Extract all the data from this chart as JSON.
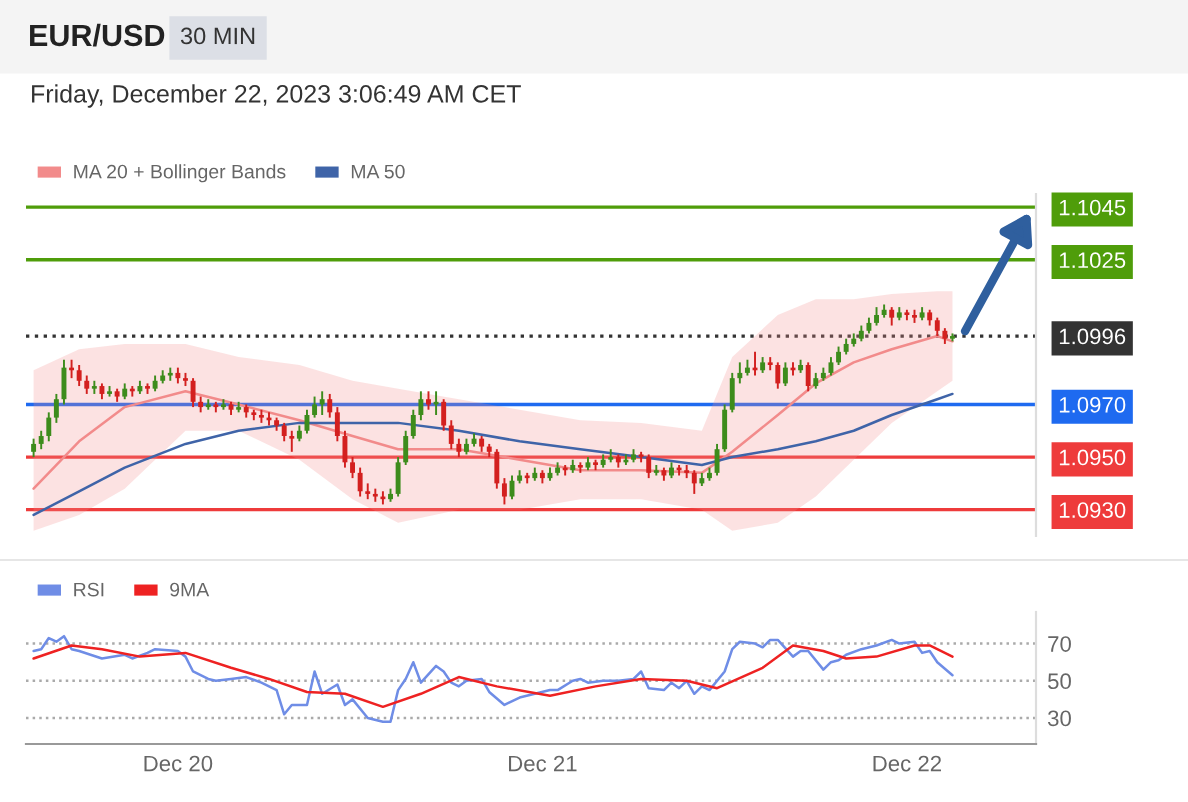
{
  "chart_data": [
    {
      "type": "candlestick",
      "title": "EUR/USD",
      "subtitle": "Friday, December 22, 2023 3:06:49 AM CET",
      "annotations": [
        "30 MIN"
      ],
      "x": [
        "2023-12-19T14:30",
        "2023-12-19T15:00",
        "2023-12-19T15:30",
        "2023-12-19T16:00",
        "2023-12-19T16:30",
        "2023-12-19T17:00",
        "2023-12-19T17:30",
        "2023-12-19T18:00",
        "2023-12-19T18:30",
        "2023-12-19T19:00",
        "2023-12-19T19:30",
        "2023-12-19T20:00",
        "2023-12-19T20:30",
        "2023-12-19T21:00",
        "2023-12-19T21:30",
        "2023-12-19T22:00",
        "2023-12-19T22:30",
        "2023-12-19T23:00",
        "2023-12-19T23:30",
        "2023-12-20T00:00",
        "2023-12-20T00:30",
        "2023-12-20T01:00",
        "2023-12-20T01:30",
        "2023-12-20T02:00",
        "2023-12-20T02:30",
        "2023-12-20T03:00",
        "2023-12-20T03:30",
        "2023-12-20T04:00",
        "2023-12-20T04:30",
        "2023-12-20T05:00",
        "2023-12-20T05:30",
        "2023-12-20T06:00",
        "2023-12-20T06:30",
        "2023-12-20T07:00",
        "2023-12-20T07:30",
        "2023-12-20T08:00",
        "2023-12-20T08:30",
        "2023-12-20T09:00",
        "2023-12-20T09:30",
        "2023-12-20T10:00",
        "2023-12-20T10:30",
        "2023-12-20T11:00",
        "2023-12-20T11:30",
        "2023-12-20T12:00",
        "2023-12-20T12:30",
        "2023-12-20T13:00",
        "2023-12-20T13:30",
        "2023-12-20T14:00",
        "2023-12-20T14:30",
        "2023-12-20T15:00",
        "2023-12-20T15:30",
        "2023-12-20T16:00",
        "2023-12-20T16:30",
        "2023-12-20T17:00",
        "2023-12-20T17:30",
        "2023-12-20T18:00",
        "2023-12-20T18:30",
        "2023-12-20T19:00",
        "2023-12-20T19:30",
        "2023-12-20T20:00",
        "2023-12-20T20:30",
        "2023-12-20T21:00",
        "2023-12-20T21:30",
        "2023-12-20T22:00",
        "2023-12-20T22:30",
        "2023-12-20T23:00",
        "2023-12-20T23:30",
        "2023-12-21T00:00",
        "2023-12-21T00:30",
        "2023-12-21T01:00",
        "2023-12-21T01:30",
        "2023-12-21T02:00",
        "2023-12-21T02:30",
        "2023-12-21T03:00",
        "2023-12-21T03:30",
        "2023-12-21T04:00",
        "2023-12-21T04:30",
        "2023-12-21T05:00",
        "2023-12-21T05:30",
        "2023-12-21T06:00",
        "2023-12-21T06:30",
        "2023-12-21T07:00",
        "2023-12-21T07:30",
        "2023-12-21T08:00",
        "2023-12-21T08:30",
        "2023-12-21T09:00",
        "2023-12-21T09:30",
        "2023-12-21T10:00",
        "2023-12-21T10:30",
        "2023-12-21T11:00",
        "2023-12-21T11:30",
        "2023-12-21T12:00",
        "2023-12-21T12:30",
        "2023-12-21T13:00",
        "2023-12-21T13:30",
        "2023-12-21T14:00",
        "2023-12-21T14:30",
        "2023-12-21T15:00",
        "2023-12-21T15:30",
        "2023-12-21T16:00",
        "2023-12-21T16:30",
        "2023-12-21T17:00",
        "2023-12-21T17:30",
        "2023-12-21T18:00",
        "2023-12-21T18:30",
        "2023-12-21T19:00",
        "2023-12-21T19:30",
        "2023-12-21T20:00",
        "2023-12-21T20:30",
        "2023-12-21T21:00",
        "2023-12-21T21:30",
        "2023-12-21T22:00",
        "2023-12-21T22:30",
        "2023-12-21T23:00",
        "2023-12-21T23:30",
        "2023-12-22T00:00",
        "2023-12-22T00:30",
        "2023-12-22T01:00",
        "2023-12-22T01:30",
        "2023-12-22T02:00",
        "2023-12-22T02:30",
        "2023-12-22T03:00"
      ],
      "ohlc": [
        [
          1.0952,
          1.0957,
          1.095,
          1.0955
        ],
        [
          1.0955,
          1.096,
          1.0953,
          1.0958
        ],
        [
          1.0958,
          1.0967,
          1.0956,
          1.0965
        ],
        [
          1.0965,
          1.0974,
          1.0963,
          1.0972
        ],
        [
          1.0972,
          1.0987,
          1.097,
          1.0984
        ],
        [
          1.0984,
          1.0987,
          1.098,
          1.0983
        ],
        [
          1.0983,
          1.0985,
          1.0977,
          1.0979
        ],
        [
          1.0979,
          1.0981,
          1.0974,
          1.0976
        ],
        [
          1.0976,
          1.0979,
          1.0974,
          1.0977
        ],
        [
          1.0977,
          1.0978,
          1.0972,
          1.0974
        ],
        [
          1.0974,
          1.0977,
          1.0973,
          1.0975
        ],
        [
          1.0975,
          1.0976,
          1.0971,
          1.0973
        ],
        [
          1.0973,
          1.0978,
          1.0972,
          1.0976
        ],
        [
          1.0976,
          1.0977,
          1.0973,
          1.0975
        ],
        [
          1.0975,
          1.0979,
          1.0974,
          1.0977
        ],
        [
          1.0977,
          1.0978,
          1.0974,
          1.0976
        ],
        [
          1.0976,
          1.0981,
          1.0975,
          1.0979
        ],
        [
          1.0979,
          1.0983,
          1.0978,
          1.0981
        ],
        [
          1.0981,
          1.0984,
          1.0979,
          1.0982
        ],
        [
          1.0982,
          1.0984,
          1.0978,
          1.098
        ],
        [
          1.098,
          1.0982,
          1.0977,
          1.0979
        ],
        [
          1.0979,
          1.098,
          1.0969,
          1.0971
        ],
        [
          1.0971,
          1.0973,
          1.0967,
          1.0969
        ],
        [
          1.0969,
          1.0972,
          1.0968,
          1.097
        ],
        [
          1.097,
          1.0971,
          1.0967,
          1.0969
        ],
        [
          1.0969,
          1.0972,
          1.0968,
          1.097
        ],
        [
          1.097,
          1.0971,
          1.0966,
          1.0968
        ],
        [
          1.0968,
          1.0971,
          1.0967,
          1.0969
        ],
        [
          1.0969,
          1.097,
          1.0965,
          1.0967
        ],
        [
          1.0967,
          1.0968,
          1.0964,
          1.0966
        ],
        [
          1.0966,
          1.0968,
          1.0963,
          1.0965
        ],
        [
          1.0965,
          1.0967,
          1.0962,
          1.0964
        ],
        [
          1.0964,
          1.0965,
          1.096,
          1.0962
        ],
        [
          1.0962,
          1.0963,
          1.0956,
          1.0958
        ],
        [
          1.0958,
          1.096,
          1.0952,
          1.0957
        ],
        [
          1.0957,
          1.0962,
          1.0956,
          1.096
        ],
        [
          1.096,
          1.0968,
          1.0959,
          1.0966
        ],
        [
          1.0966,
          1.0973,
          1.0965,
          1.097
        ],
        [
          1.097,
          1.0975,
          1.0966,
          1.0972
        ],
        [
          1.0972,
          1.0974,
          1.0965,
          1.0967
        ],
        [
          1.0967,
          1.0969,
          1.0956,
          1.0958
        ],
        [
          1.0958,
          1.096,
          1.0946,
          1.0948
        ],
        [
          1.0948,
          1.095,
          1.0942,
          1.0944
        ],
        [
          1.0944,
          1.0946,
          1.0935,
          1.0937
        ],
        [
          1.0937,
          1.094,
          1.0934,
          1.0936
        ],
        [
          1.0936,
          1.0938,
          1.0933,
          1.0935
        ],
        [
          1.0935,
          1.0937,
          1.0932,
          1.0934
        ],
        [
          1.0934,
          1.0938,
          1.0933,
          1.0936
        ],
        [
          1.0936,
          1.095,
          1.0935,
          1.0948
        ],
        [
          1.0948,
          1.096,
          1.0947,
          1.0958
        ],
        [
          1.0958,
          1.0968,
          1.0957,
          1.0966
        ],
        [
          1.0966,
          1.0975,
          1.0964,
          1.0972
        ],
        [
          1.0972,
          1.0975,
          1.0968,
          1.097
        ],
        [
          1.097,
          1.0975,
          1.0966,
          1.0971
        ],
        [
          1.0971,
          1.0972,
          1.096,
          1.0962
        ],
        [
          1.0962,
          1.0964,
          1.0953,
          1.0955
        ],
        [
          1.0955,
          1.0957,
          1.095,
          1.0952
        ],
        [
          1.0952,
          1.0957,
          1.0951,
          1.0955
        ],
        [
          1.0955,
          1.0959,
          1.0954,
          1.0957
        ],
        [
          1.0957,
          1.0958,
          1.0952,
          1.0954
        ],
        [
          1.0954,
          1.0955,
          1.095,
          1.0952
        ],
        [
          1.0952,
          1.0953,
          1.0938,
          1.094
        ],
        [
          1.094,
          1.0942,
          1.0932,
          1.0935
        ],
        [
          1.0935,
          1.0943,
          1.0934,
          1.0941
        ],
        [
          1.0941,
          1.0945,
          1.094,
          1.0943
        ],
        [
          1.0943,
          1.0944,
          1.094,
          1.0942
        ],
        [
          1.0942,
          1.0946,
          1.0941,
          1.0944
        ],
        [
          1.0944,
          1.0945,
          1.094,
          1.0942
        ],
        [
          1.0942,
          1.0946,
          1.0941,
          1.0944
        ],
        [
          1.0944,
          1.0948,
          1.0943,
          1.0946
        ],
        [
          1.0946,
          1.0947,
          1.0943,
          1.0945
        ],
        [
          1.0945,
          1.0949,
          1.0944,
          1.0947
        ],
        [
          1.0947,
          1.0948,
          1.0944,
          1.0946
        ],
        [
          1.0946,
          1.095,
          1.0945,
          1.0948
        ],
        [
          1.0948,
          1.0949,
          1.0945,
          1.0947
        ],
        [
          1.0947,
          1.0951,
          1.0946,
          1.0949
        ],
        [
          1.0949,
          1.0953,
          1.0948,
          1.095
        ],
        [
          1.095,
          1.0951,
          1.0946,
          1.0948
        ],
        [
          1.0948,
          1.0951,
          1.0947,
          1.0949
        ],
        [
          1.0949,
          1.0953,
          1.0948,
          1.0951
        ],
        [
          1.0951,
          1.0952,
          1.0948,
          1.095
        ],
        [
          1.095,
          1.0951,
          1.0942,
          1.0944
        ],
        [
          1.0944,
          1.0947,
          1.0943,
          1.0945
        ],
        [
          1.0945,
          1.0946,
          1.0941,
          1.0943
        ],
        [
          1.0943,
          1.0948,
          1.0942,
          1.0946
        ],
        [
          1.0946,
          1.0947,
          1.0943,
          1.0945
        ],
        [
          1.0945,
          1.0947,
          1.0942,
          1.0944
        ],
        [
          1.0944,
          1.0945,
          1.0936,
          1.094
        ],
        [
          1.094,
          1.0944,
          1.0939,
          1.0942
        ],
        [
          1.0942,
          1.0946,
          1.0941,
          1.0944
        ],
        [
          1.0944,
          1.0955,
          1.0943,
          1.0953
        ],
        [
          1.0953,
          1.097,
          1.0952,
          1.0968
        ],
        [
          1.0968,
          1.0982,
          1.0967,
          1.098
        ],
        [
          1.098,
          1.0986,
          1.0978,
          1.0982
        ],
        [
          1.0982,
          1.0987,
          1.0981,
          1.0984
        ],
        [
          1.0984,
          1.099,
          1.0981,
          1.0983
        ],
        [
          1.0983,
          1.0988,
          1.0982,
          1.0986
        ],
        [
          1.0986,
          1.0988,
          1.0983,
          1.0985
        ],
        [
          1.0985,
          1.0986,
          1.0976,
          1.0978
        ],
        [
          1.0978,
          1.0986,
          1.0977,
          1.0984
        ],
        [
          1.0984,
          1.0986,
          1.0981,
          1.0983
        ],
        [
          1.0983,
          1.0987,
          1.0982,
          1.0985
        ],
        [
          1.0985,
          1.0986,
          1.0975,
          1.0977
        ],
        [
          1.0977,
          1.0982,
          1.0976,
          1.098
        ],
        [
          1.098,
          1.0984,
          1.0979,
          1.0982
        ],
        [
          1.0982,
          1.0988,
          1.0981,
          1.0986
        ],
        [
          1.0986,
          1.0992,
          1.0985,
          1.099
        ],
        [
          1.099,
          1.0995,
          1.0989,
          1.0993
        ],
        [
          1.0993,
          1.0997,
          1.0992,
          1.0995
        ],
        [
          1.0995,
          1.1,
          1.0994,
          1.0998
        ],
        [
          1.0998,
          1.1003,
          1.0997,
          1.1001
        ],
        [
          1.1001,
          1.1007,
          1.1,
          1.1004
        ],
        [
          1.1004,
          1.1008,
          1.1003,
          1.1006
        ],
        [
          1.1006,
          1.1007,
          1.1,
          1.1003
        ],
        [
          1.1003,
          1.1007,
          1.1002,
          1.1005
        ],
        [
          1.1005,
          1.1006,
          1.1002,
          1.1004
        ],
        [
          1.1004,
          1.1006,
          1.1001,
          1.1003
        ],
        [
          1.1003,
          1.1007,
          1.1002,
          1.1005
        ],
        [
          1.1005,
          1.1006,
          1.1,
          1.1002
        ],
        [
          1.1002,
          1.1003,
          1.0996,
          1.0998
        ],
        [
          1.0998,
          1.0999,
          1.0993,
          1.0995
        ],
        [
          1.0995,
          1.0997,
          1.0994,
          1.0996
        ]
      ],
      "series": [
        {
          "name": "MA 20 + Bollinger Bands",
          "type": "line",
          "color": "#f28b8b",
          "x": [
            "2023-12-19T14:30",
            "2023-12-19T17:30",
            "2023-12-19T20:30",
            "2023-12-20T00:30",
            "2023-12-20T04:00",
            "2023-12-20T08:00",
            "2023-12-20T11:30",
            "2023-12-20T14:30",
            "2023-12-20T18:30",
            "2023-12-20T22:30",
            "2023-12-21T02:30",
            "2023-12-21T06:30",
            "2023-12-21T10:30",
            "2023-12-21T12:30",
            "2023-12-21T15:30",
            "2023-12-21T18:00",
            "2023-12-21T20:30",
            "2023-12-21T23:00",
            "2023-12-22T02:00",
            "2023-12-22T03:00"
          ],
          "values": [
            1.0938,
            1.0956,
            1.0969,
            1.0975,
            1.097,
            1.0964,
            1.0958,
            1.0953,
            1.0953,
            1.0949,
            1.0945,
            1.0945,
            1.0944,
            1.0952,
            1.0966,
            1.0978,
            1.0986,
            1.0991,
            1.0996,
            1.0994
          ],
          "upper": [
            1.0983,
            1.0991,
            1.0993,
            1.0993,
            1.0988,
            1.0985,
            1.0979,
            1.0976,
            1.0972,
            1.0968,
            1.0964,
            1.0963,
            1.096,
            1.0988,
            1.1004,
            1.101,
            1.101,
            1.1012,
            1.1013,
            1.1013
          ],
          "lower": [
            1.0922,
            1.0928,
            1.0938,
            1.096,
            1.096,
            1.0949,
            1.0934,
            1.0925,
            1.093,
            1.093,
            1.0934,
            1.0934,
            1.093,
            1.0922,
            1.0925,
            1.0935,
            1.0949,
            1.0963,
            1.0975,
            1.0979
          ]
        },
        {
          "name": "MA 50",
          "type": "line",
          "color": "#3f64a8",
          "x": [
            "2023-12-19T14:30",
            "2023-12-19T17:30",
            "2023-12-19T20:30",
            "2023-12-20T00:30",
            "2023-12-20T04:00",
            "2023-12-20T08:00",
            "2023-12-20T11:30",
            "2023-12-20T14:30",
            "2023-12-20T18:30",
            "2023-12-20T22:30",
            "2023-12-21T02:30",
            "2023-12-21T06:30",
            "2023-12-21T10:30",
            "2023-12-21T12:30",
            "2023-12-21T15:30",
            "2023-12-21T18:00",
            "2023-12-21T20:30",
            "2023-12-21T23:00",
            "2023-12-22T02:00",
            "2023-12-22T03:00"
          ],
          "values": [
            1.0928,
            1.0937,
            1.0946,
            1.0955,
            1.096,
            1.0963,
            1.0963,
            1.0963,
            1.096,
            1.0956,
            1.0953,
            1.095,
            1.0947,
            1.095,
            1.0953,
            1.0956,
            1.096,
            1.0966,
            1.0972,
            1.0974
          ]
        }
      ],
      "ref_lines": [
        {
          "axis": "y",
          "value": 1.1045,
          "color": "#4f9d0a",
          "line_style": "solid"
        },
        {
          "axis": "y",
          "value": 1.1025,
          "color": "#4f9d0a",
          "line_style": "solid"
        },
        {
          "axis": "y",
          "value": 1.0996,
          "color": "#333333",
          "line_style": "dotted"
        },
        {
          "axis": "y",
          "value": 1.097,
          "color": "#1e6af0",
          "line_style": "solid"
        },
        {
          "axis": "y",
          "value": 1.095,
          "color": "#ee3b3b",
          "line_style": "solid"
        },
        {
          "axis": "y",
          "value": 1.093,
          "color": "#ee3b3b",
          "line_style": "solid"
        }
      ],
      "xlim": [
        "2023-12-19T14:00",
        "2023-12-22T08:30"
      ],
      "ylim": [
        1.092,
        1.105
      ],
      "yticks": [
        {
          "value": 1.093,
          "label": "1.0930"
        },
        {
          "value": 1.095,
          "label": "1.0950"
        },
        {
          "value": 1.097,
          "label": "1.0970"
        },
        {
          "value": 1.0996,
          "label": "1.0996"
        },
        {
          "value": 1.1025,
          "label": "1.1025"
        },
        {
          "value": 1.1045,
          "label": "1.1045"
        }
      ],
      "tick_labels": "y",
      "grid": false,
      "legend": "top left"
    },
    {
      "type": "line",
      "series": [
        {
          "name": "RSI",
          "color": "#6f8de6",
          "x": [
            "2023-12-19T14:30",
            "2023-12-19T15:00",
            "2023-12-19T15:30",
            "2023-12-19T16:00",
            "2023-12-19T16:30",
            "2023-12-19T17:00",
            "2023-12-19T17:30",
            "2023-12-19T19:00",
            "2023-12-19T20:30",
            "2023-12-19T21:00",
            "2023-12-19T22:00",
            "2023-12-19T22:30",
            "2023-12-20T00:00",
            "2023-12-20T00:30",
            "2023-12-20T01:00",
            "2023-12-20T02:00",
            "2023-12-20T02:30",
            "2023-12-20T03:30",
            "2023-12-20T04:30",
            "2023-12-20T05:30",
            "2023-12-20T06:30",
            "2023-12-20T07:00",
            "2023-12-20T07:30",
            "2023-12-20T08:30",
            "2023-12-20T09:00",
            "2023-12-20T09:30",
            "2023-12-20T10:30",
            "2023-12-20T11:00",
            "2023-12-20T11:30",
            "2023-12-20T12:30",
            "2023-12-20T13:30",
            "2023-12-20T14:00",
            "2023-12-20T14:30",
            "2023-12-20T15:00",
            "2023-12-20T15:30",
            "2023-12-20T16:00",
            "2023-12-20T17:00",
            "2023-12-20T17:30",
            "2023-12-20T18:00",
            "2023-12-20T18:30",
            "2023-12-20T19:00",
            "2023-12-20T20:00",
            "2023-12-20T20:30",
            "2023-12-20T21:30",
            "2023-12-20T22:30",
            "2023-12-20T23:30",
            "2023-12-21T00:30",
            "2023-12-21T01:00",
            "2023-12-21T02:00",
            "2023-12-21T02:30",
            "2023-12-21T03:00",
            "2023-12-21T04:00",
            "2023-12-21T05:00",
            "2023-12-21T06:00",
            "2023-12-21T06:30",
            "2023-12-21T07:00",
            "2023-12-21T08:00",
            "2023-12-21T08:30",
            "2023-12-21T09:00",
            "2023-12-21T09:30",
            "2023-12-21T10:00",
            "2023-12-21T10:30",
            "2023-12-21T11:00",
            "2023-12-21T12:00",
            "2023-12-21T12:30",
            "2023-12-21T13:00",
            "2023-12-21T14:00",
            "2023-12-21T14:30",
            "2023-12-21T15:00",
            "2023-12-21T15:30",
            "2023-12-21T16:30",
            "2023-12-21T17:00",
            "2023-12-21T17:30",
            "2023-12-21T18:30",
            "2023-12-21T19:00",
            "2023-12-21T19:30",
            "2023-12-21T20:00",
            "2023-12-21T21:00",
            "2023-12-21T22:00",
            "2023-12-21T23:00",
            "2023-12-21T23:30",
            "2023-12-22T00:30",
            "2023-12-22T01:00",
            "2023-12-22T01:30",
            "2023-12-22T02:00",
            "2023-12-22T03:00"
          ],
          "values": [
            66,
            67,
            73,
            71,
            74,
            67,
            66,
            62,
            64,
            62,
            65,
            67,
            66,
            63,
            55,
            51,
            50,
            51,
            52,
            49,
            45,
            32,
            37,
            37,
            55,
            43,
            48,
            37,
            40,
            30,
            28,
            28,
            45,
            51,
            60,
            49,
            58,
            55,
            49,
            47,
            50,
            51,
            44,
            37,
            41,
            43,
            45,
            45,
            50,
            51,
            49,
            50,
            50,
            51,
            55,
            46,
            45,
            49,
            46,
            50,
            43,
            47,
            45,
            55,
            67,
            71,
            70,
            68,
            72,
            72,
            63,
            66,
            66,
            56,
            60,
            61,
            64,
            67,
            69,
            72,
            70,
            71,
            65,
            66,
            60,
            53
          ]
        },
        {
          "name": "9MA",
          "color": "#ee2222",
          "x": [
            "2023-12-19T14:30",
            "2023-12-19T17:00",
            "2023-12-19T19:00",
            "2023-12-19T21:30",
            "2023-12-20T00:30",
            "2023-12-20T03:30",
            "2023-12-20T06:00",
            "2023-12-20T08:30",
            "2023-12-20T11:00",
            "2023-12-20T13:30",
            "2023-12-20T16:00",
            "2023-12-20T18:30",
            "2023-12-20T21:00",
            "2023-12-21T00:30",
            "2023-12-21T03:30",
            "2023-12-21T06:30",
            "2023-12-21T09:30",
            "2023-12-21T11:30",
            "2023-12-21T14:30",
            "2023-12-21T16:30",
            "2023-12-21T18:30",
            "2023-12-21T20:00",
            "2023-12-21T22:00",
            "2023-12-22T00:30",
            "2023-12-22T01:30",
            "2023-12-22T03:00"
          ],
          "values": [
            62,
            69,
            67,
            63,
            65,
            57,
            51,
            44,
            43,
            36,
            43,
            52,
            47,
            42,
            47,
            51,
            50,
            46,
            57,
            69,
            66,
            62,
            63,
            69,
            69,
            63
          ]
        }
      ],
      "xlim": [
        "2023-12-19T14:00",
        "2023-12-22T08:30"
      ],
      "xticks": [
        {
          "value": "2023-12-20",
          "label": "Dec 20"
        },
        {
          "value": "2023-12-21",
          "label": "Dec 21"
        },
        {
          "value": "2023-12-22",
          "label": "Dec 22"
        }
      ],
      "ylim": [
        16,
        87
      ],
      "yticks": [
        30,
        50,
        70
      ],
      "grid": "y",
      "legend": "top left"
    }
  ]
}
